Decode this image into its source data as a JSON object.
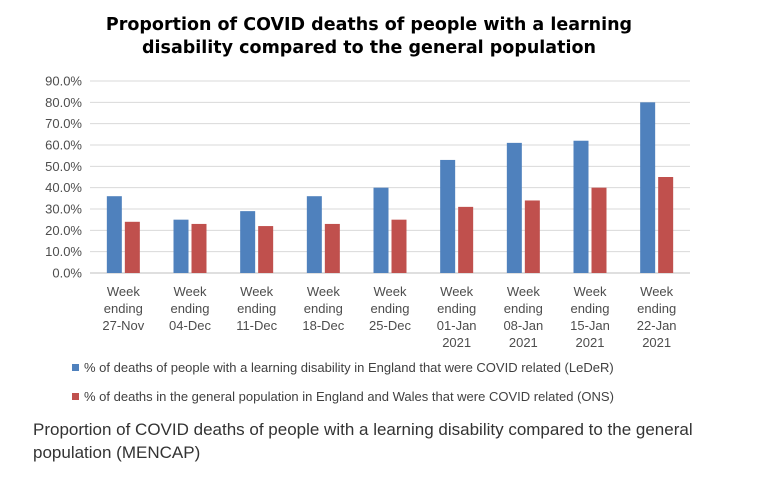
{
  "chart_data": {
    "type": "bar",
    "title": "Proportion of COVID deaths of people with a learning disability compared to the general population",
    "categories": [
      [
        "Week",
        "ending",
        "27-Nov"
      ],
      [
        "Week",
        "ending",
        "04-Dec"
      ],
      [
        "Week",
        "ending",
        "11-Dec"
      ],
      [
        "Week",
        "ending",
        "18-Dec"
      ],
      [
        "Week",
        "ending",
        "25-Dec"
      ],
      [
        "Week",
        "ending",
        "01-Jan",
        "2021"
      ],
      [
        "Week",
        "ending",
        "08-Jan",
        "2021"
      ],
      [
        "Week",
        "ending",
        "15-Jan",
        "2021"
      ],
      [
        "Week",
        "ending",
        "22-Jan",
        "2021"
      ]
    ],
    "series": [
      {
        "name": "% of deaths of people with a learning disability in England that were COVID related (LeDeR)",
        "color": "#4f81bd",
        "values": [
          36,
          25,
          29,
          36,
          40,
          53,
          61,
          62,
          80
        ]
      },
      {
        "name": "% of deaths in the general population in England and Wales that were COVID related (ONS)",
        "color": "#c0504d",
        "values": [
          24,
          23,
          22,
          23,
          25,
          31,
          34,
          40,
          45
        ]
      }
    ],
    "ylim": [
      0,
      90
    ],
    "yticks": [
      "0.0%",
      "10.0%",
      "20.0%",
      "30.0%",
      "40.0%",
      "50.0%",
      "60.0%",
      "70.0%",
      "80.0%",
      "90.0%"
    ],
    "grid": true,
    "legend_position": "bottom"
  },
  "caption": "Proportion of COVID deaths of people with a learning disability compared to the general population (MENCAP)"
}
